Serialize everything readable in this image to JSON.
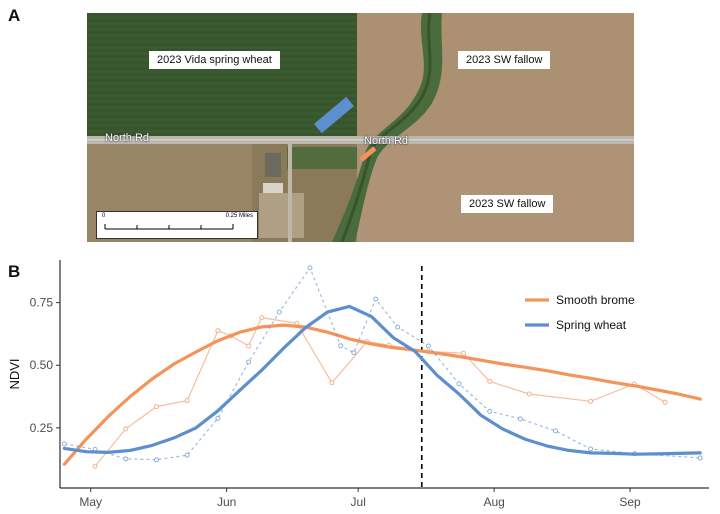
{
  "panels": {
    "a": "A",
    "b": "B"
  },
  "map": {
    "field_labels": {
      "wheat": "2023 Vida spring wheat",
      "fallow_top": "2023 SW fallow",
      "fallow_bottom": "2023 SW fallow"
    },
    "road_labels": {
      "left": "North Rd",
      "right": "North Rd"
    },
    "scale": {
      "zero": "0",
      "max": "0.25 Miles"
    },
    "colors": {
      "wheat_marker": "#5b8fcf",
      "brome_marker": "#f4935a"
    }
  },
  "chart_data": {
    "type": "line",
    "ylabel": "NDVI",
    "xlabel": "",
    "x_unit": "day of year",
    "xlim": [
      114,
      262
    ],
    "ylim": [
      0.01,
      0.92
    ],
    "x_ticks": [
      {
        "label": "May",
        "value": 121
      },
      {
        "label": "Jun",
        "value": 152
      },
      {
        "label": "Jul",
        "value": 182
      },
      {
        "label": "Aug",
        "value": 213
      },
      {
        "label": "Sep",
        "value": 244
      }
    ],
    "y_ticks": [
      {
        "label": "0.25",
        "value": 0.25
      },
      {
        "label": "0.50",
        "value": 0.5
      },
      {
        "label": "0.75",
        "value": 0.75
      }
    ],
    "vline_x": 196.5,
    "legend_position": "top-right",
    "series": [
      {
        "name": "Smooth brome",
        "color": "#f4935a",
        "raw_x": [
          122,
          129,
          136,
          143,
          150,
          153,
          157,
          160,
          168,
          176,
          184,
          189,
          198,
          206,
          212,
          221,
          235,
          245,
          252
        ],
        "raw_y": [
          0.097,
          0.246,
          0.335,
          0.359,
          0.638,
          0.617,
          0.577,
          0.69,
          0.667,
          0.43,
          0.594,
          0.58,
          0.555,
          0.548,
          0.435,
          0.385,
          0.356,
          0.425,
          0.352
        ],
        "smooth_x": [
          115,
          120,
          125,
          130,
          135,
          140,
          145,
          150,
          155,
          160,
          165,
          170,
          175,
          180,
          185,
          190,
          195,
          200,
          205,
          210,
          215,
          220,
          225,
          230,
          235,
          240,
          245,
          250,
          255,
          260
        ],
        "smooth_y": [
          0.105,
          0.205,
          0.295,
          0.375,
          0.445,
          0.505,
          0.553,
          0.598,
          0.632,
          0.653,
          0.66,
          0.652,
          0.632,
          0.605,
          0.585,
          0.57,
          0.56,
          0.548,
          0.535,
          0.52,
          0.505,
          0.492,
          0.478,
          0.462,
          0.448,
          0.432,
          0.418,
          0.402,
          0.385,
          0.365
        ]
      },
      {
        "name": "Spring wheat",
        "color": "#5b8fcf",
        "raw_x": [
          115,
          122,
          129,
          136,
          143,
          150,
          157,
          164,
          171,
          178,
          181,
          186,
          191,
          198,
          205,
          212,
          219,
          227,
          235,
          245,
          260
        ],
        "raw_y": [
          0.186,
          0.164,
          0.126,
          0.123,
          0.141,
          0.288,
          0.513,
          0.712,
          0.889,
          0.578,
          0.55,
          0.764,
          0.652,
          0.577,
          0.426,
          0.316,
          0.286,
          0.238,
          0.166,
          0.147,
          0.13
        ],
        "smooth_x": [
          115,
          120,
          125,
          130,
          135,
          140,
          145,
          150,
          155,
          160,
          165,
          170,
          175,
          180,
          185,
          190,
          195,
          200,
          205,
          210,
          215,
          220,
          225,
          230,
          235,
          240,
          245,
          250,
          255,
          260
        ],
        "smooth_y": [
          0.168,
          0.155,
          0.152,
          0.16,
          0.18,
          0.21,
          0.25,
          0.318,
          0.4,
          0.48,
          0.568,
          0.65,
          0.712,
          0.735,
          0.695,
          0.61,
          0.555,
          0.46,
          0.385,
          0.3,
          0.245,
          0.205,
          0.178,
          0.16,
          0.15,
          0.148,
          0.145,
          0.146,
          0.148,
          0.15
        ]
      }
    ]
  }
}
